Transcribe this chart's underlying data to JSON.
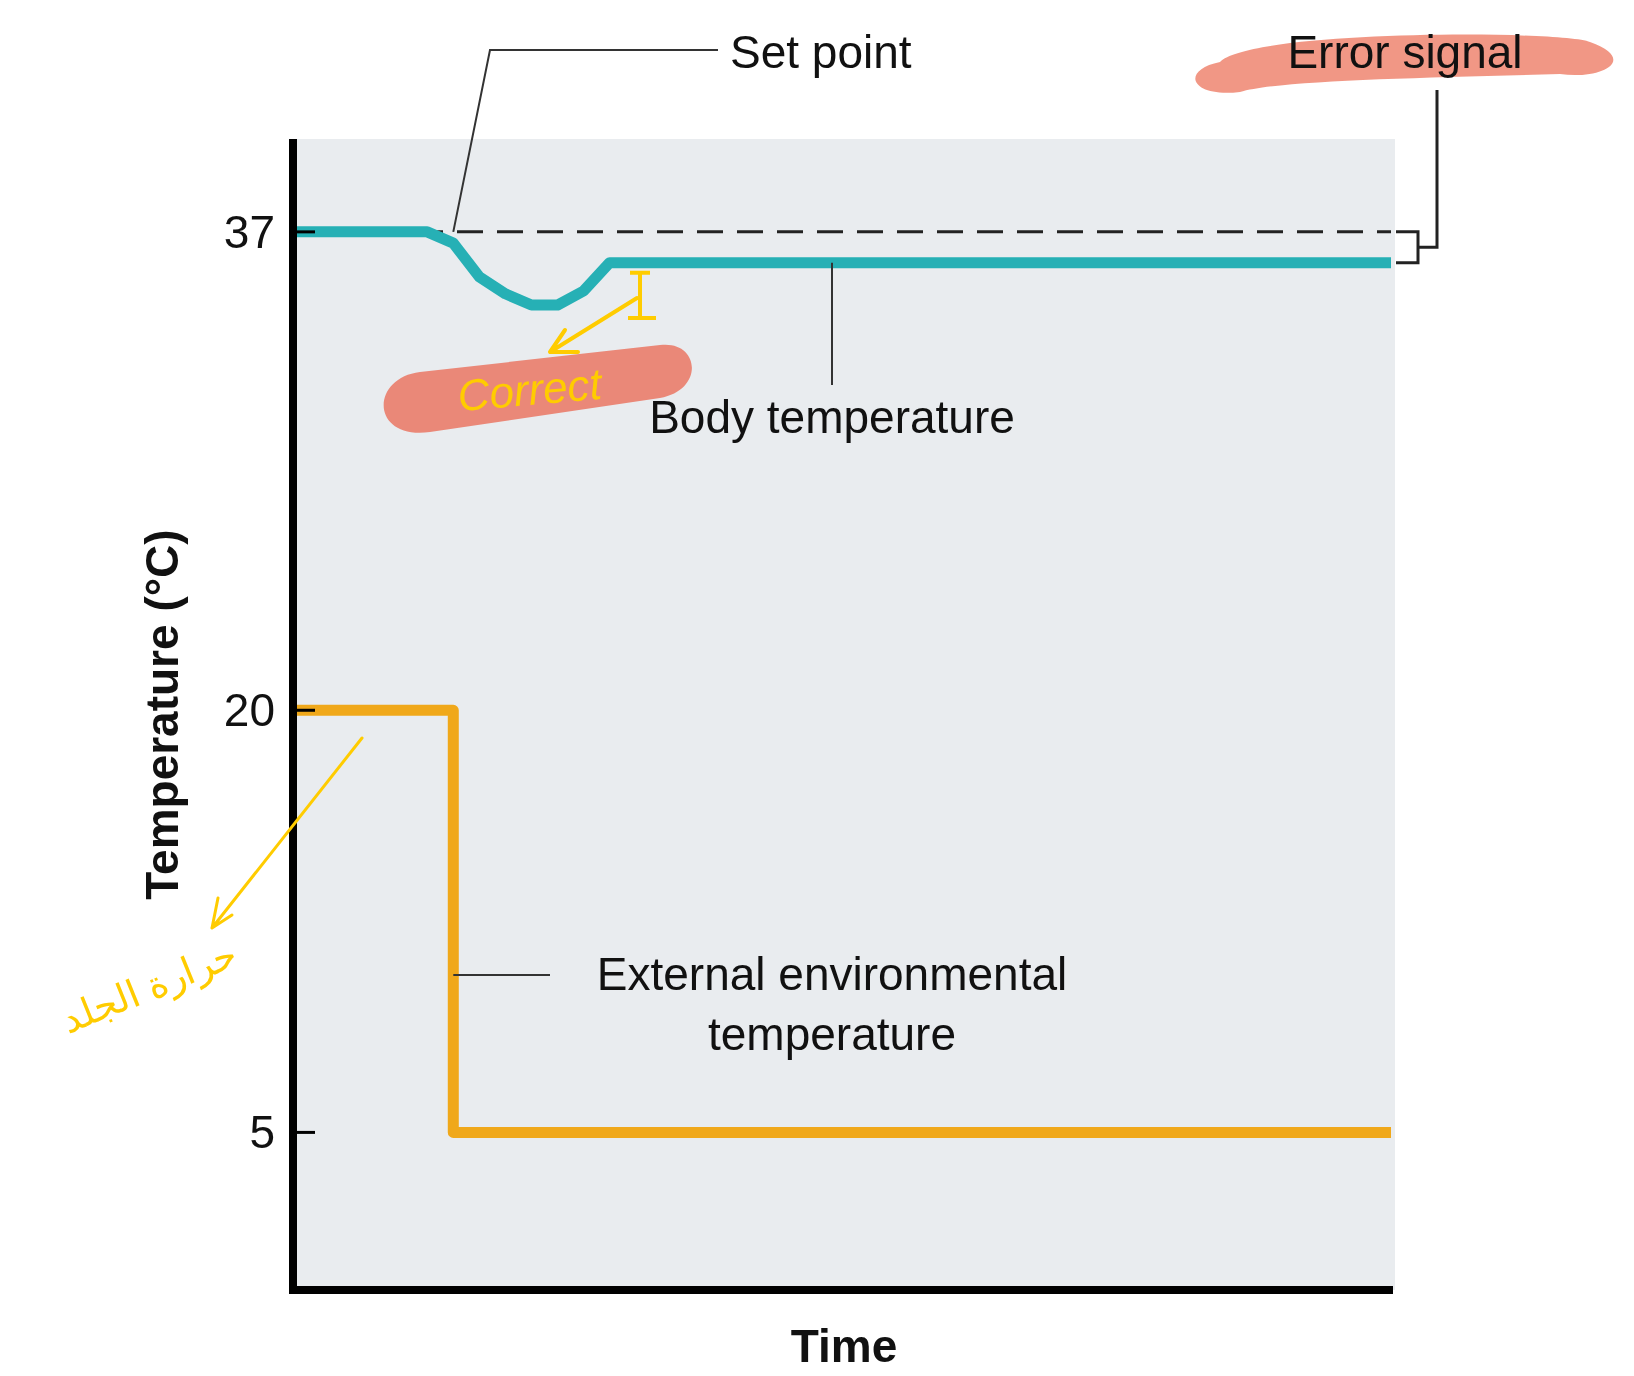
{
  "chart_data": {
    "type": "line",
    "xlabel": "Time",
    "ylabel": "Temperature (°C)",
    "categories": [
      null,
      null,
      null,
      null,
      null,
      null,
      null,
      null,
      null,
      null,
      null,
      null,
      null,
      null,
      null,
      null,
      null,
      null,
      null,
      null,
      null,
      null,
      null,
      null,
      null,
      null,
      null,
      null,
      null,
      null,
      null,
      null,
      null,
      null,
      null,
      null,
      null,
      null,
      null,
      null,
      null,
      null,
      null
    ],
    "series": [
      {
        "color": "#26b0b5",
        "values": [
          37,
          37,
          37,
          37,
          37,
          37,
          36.6,
          35.4,
          34.8,
          34.4,
          34.4,
          34.9,
          35.9,
          35.9,
          35.9,
          35.9,
          35.9,
          35.9,
          35.9,
          35.9,
          35.9,
          35.9,
          35.9,
          35.9,
          35.9,
          35.9,
          35.9,
          35.9,
          35.9,
          35.9,
          35.9,
          35.9,
          35.9,
          35.9,
          35.9,
          35.9,
          35.9,
          35.9,
          35.9,
          35.9,
          35.9,
          35.9,
          35.9
        ]
      },
      {
        "type": "step",
        "color": "#f0a81a",
        "values": [
          20,
          20,
          20,
          20,
          20,
          20,
          5,
          5,
          5,
          5,
          5,
          5,
          5,
          5,
          5,
          5,
          5,
          5,
          5,
          5,
          5,
          5,
          5,
          5,
          5,
          5,
          5,
          5,
          5,
          5,
          5,
          5,
          5,
          5,
          5,
          5,
          5,
          5,
          5,
          5,
          5,
          5,
          5
        ]
      }
    ],
    "ylim": [
      -0.6,
      40.3
    ],
    "yticks": [
      37,
      20,
      5
    ],
    "ref_lines": [
      {
        "axis": "y",
        "value": 37,
        "line_style": "dashed",
        "color": "#222222"
      }
    ],
    "annotations": [
      "Set point",
      "Error signal",
      "Body temperature",
      "External environmental\ntemperature",
      "Correct",
      "حرارة الجلد"
    ],
    "grid": false,
    "tick_labels": "y"
  }
}
